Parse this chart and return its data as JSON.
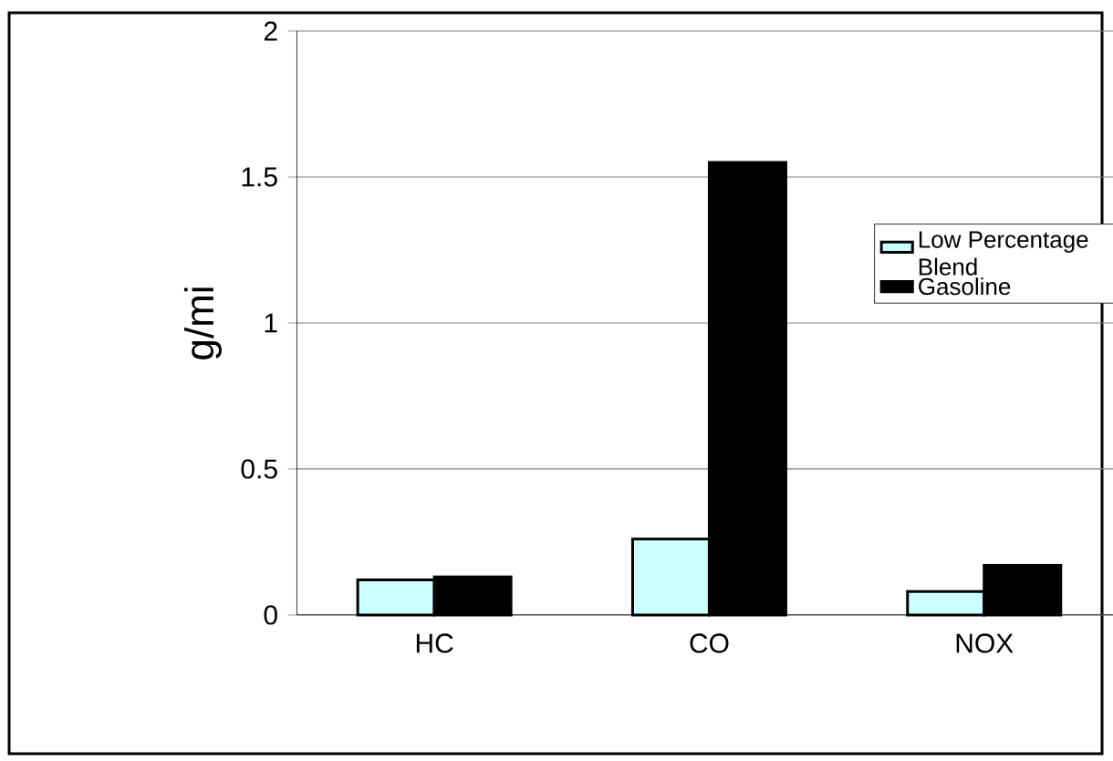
{
  "chart_data": {
    "type": "bar",
    "ylabel": "g/mi",
    "categories": [
      "HC",
      "CO",
      "NOX"
    ],
    "series": [
      {
        "name": "Low Percentage Blend",
        "color": "#ccffff",
        "values": [
          0.12,
          0.26,
          0.08
        ]
      },
      {
        "name": "Gasoline",
        "color": "#000000",
        "values": [
          0.13,
          1.55,
          0.17
        ]
      }
    ],
    "ylim": [
      0,
      2
    ],
    "yticks": [
      0,
      0.5,
      1,
      1.5,
      2
    ],
    "grid": "y",
    "legend": "right"
  }
}
